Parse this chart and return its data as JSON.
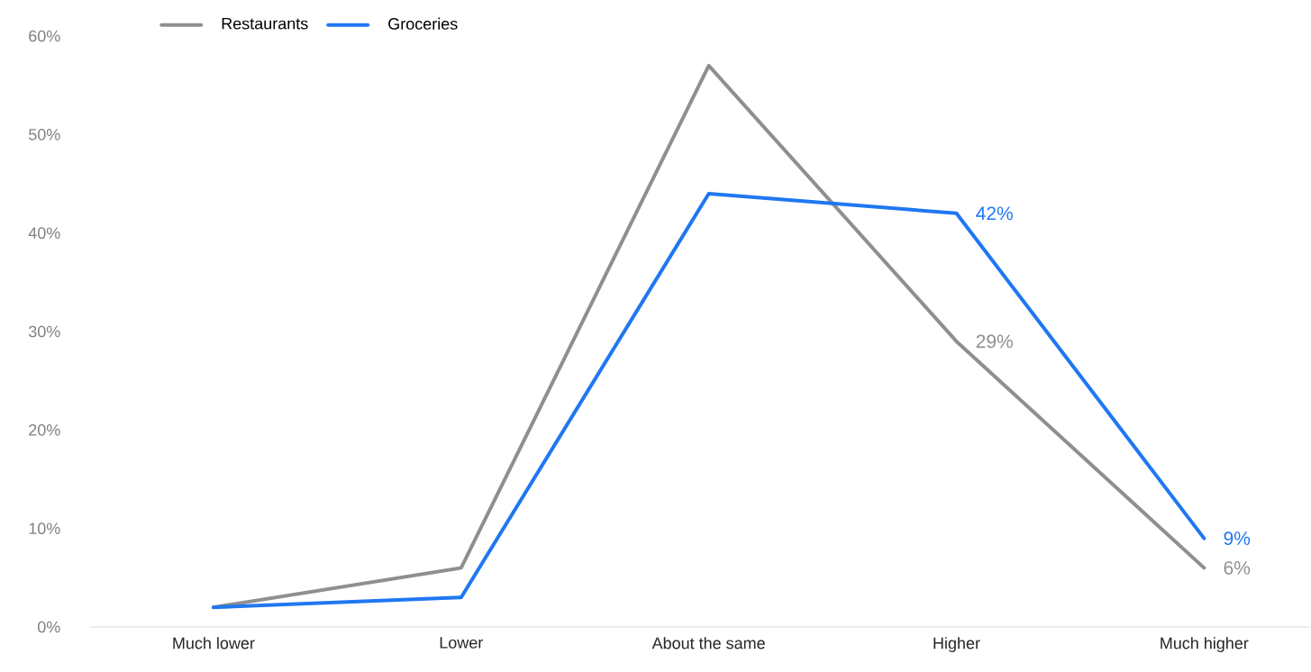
{
  "chart_data": {
    "type": "line",
    "categories": [
      "Much lower",
      "Lower",
      "About the same",
      "Higher",
      "Much higher"
    ],
    "series": [
      {
        "name": "Restaurants",
        "color": "#8f8f8f",
        "values": [
          2,
          6,
          57,
          29,
          6
        ],
        "value_labels": [
          null,
          null,
          null,
          "29%",
          "6%"
        ]
      },
      {
        "name": "Groceries",
        "color": "#1f77f2",
        "values": [
          2,
          3,
          44,
          42,
          9
        ],
        "value_labels": [
          null,
          null,
          null,
          "42%",
          "9%"
        ]
      }
    ],
    "ylim": [
      0,
      60
    ],
    "yticks": [
      {
        "value": 0,
        "label": "0%"
      },
      {
        "value": 10,
        "label": "10%"
      },
      {
        "value": 20,
        "label": "20%"
      },
      {
        "value": 30,
        "label": "30%"
      },
      {
        "value": 40,
        "label": "40%"
      },
      {
        "value": 50,
        "label": "50%"
      },
      {
        "value": 60,
        "label": "60%"
      }
    ],
    "grid": false,
    "legend": "top left",
    "marker": "none",
    "line_style": "solid"
  }
}
